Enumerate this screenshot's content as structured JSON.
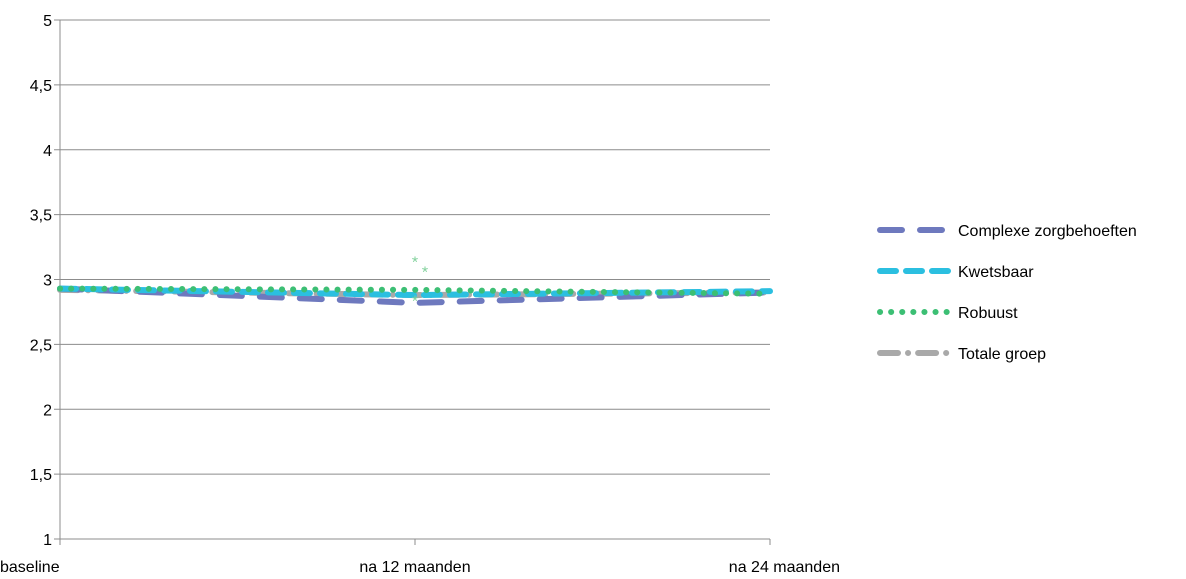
{
  "chart_data": {
    "type": "line",
    "title": "",
    "xlabel": "",
    "ylabel": "",
    "categories": [
      "baseline",
      "na 12 maanden",
      "na 24 maanden"
    ],
    "ylim": [
      1,
      5
    ],
    "yticks": [
      "1",
      "1,5",
      "2",
      "2,5",
      "3",
      "3,5",
      "4",
      "4,5",
      "5"
    ],
    "grid": true,
    "legend_position": "right",
    "series": [
      {
        "name": "Complexe zorgbehoeften",
        "values": [
          2.93,
          2.82,
          2.9
        ],
        "color": "#6e79be",
        "dash": "long-dash"
      },
      {
        "name": "Kwetsbaar",
        "values": [
          2.93,
          2.88,
          2.91
        ],
        "color": "#2bbfe0",
        "dash": "dash"
      },
      {
        "name": "Robuust",
        "values": [
          2.93,
          2.92,
          2.89
        ],
        "color": "#3cbf74",
        "dash": "dot"
      },
      {
        "name": "Totale groep",
        "values": [
          2.92,
          2.88,
          2.9
        ],
        "color": "#a9a9a9",
        "dash": "dash-dot"
      }
    ],
    "annotations": [
      {
        "text": "*",
        "x": "na 12 maanden",
        "color": "#7fd09a"
      }
    ]
  }
}
